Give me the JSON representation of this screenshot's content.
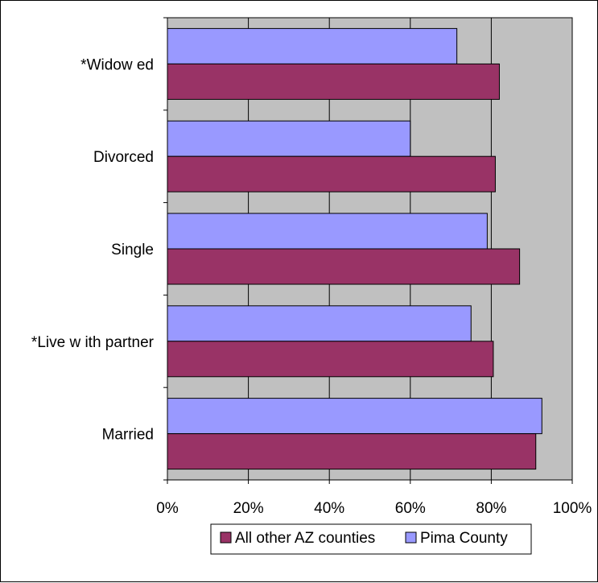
{
  "chart_data": {
    "type": "bar",
    "orientation": "horizontal",
    "categories": [
      "Married",
      "*Live w ith partner",
      "Single",
      "Divorced",
      "*Widow ed"
    ],
    "series": [
      {
        "name": "All other AZ counties",
        "values": [
          91,
          80.5,
          87,
          81,
          82
        ],
        "color": "#993366"
      },
      {
        "name": "Pima County",
        "values": [
          92.5,
          75,
          79,
          60,
          71.5
        ],
        "color": "#9999ff"
      }
    ],
    "xlim": [
      0,
      100
    ],
    "x_ticks": [
      "0%",
      "20%",
      "40%",
      "60%",
      "80%",
      "100%"
    ],
    "plot_background": "#c0c0c0",
    "grid": true,
    "legend_position": "bottom"
  }
}
